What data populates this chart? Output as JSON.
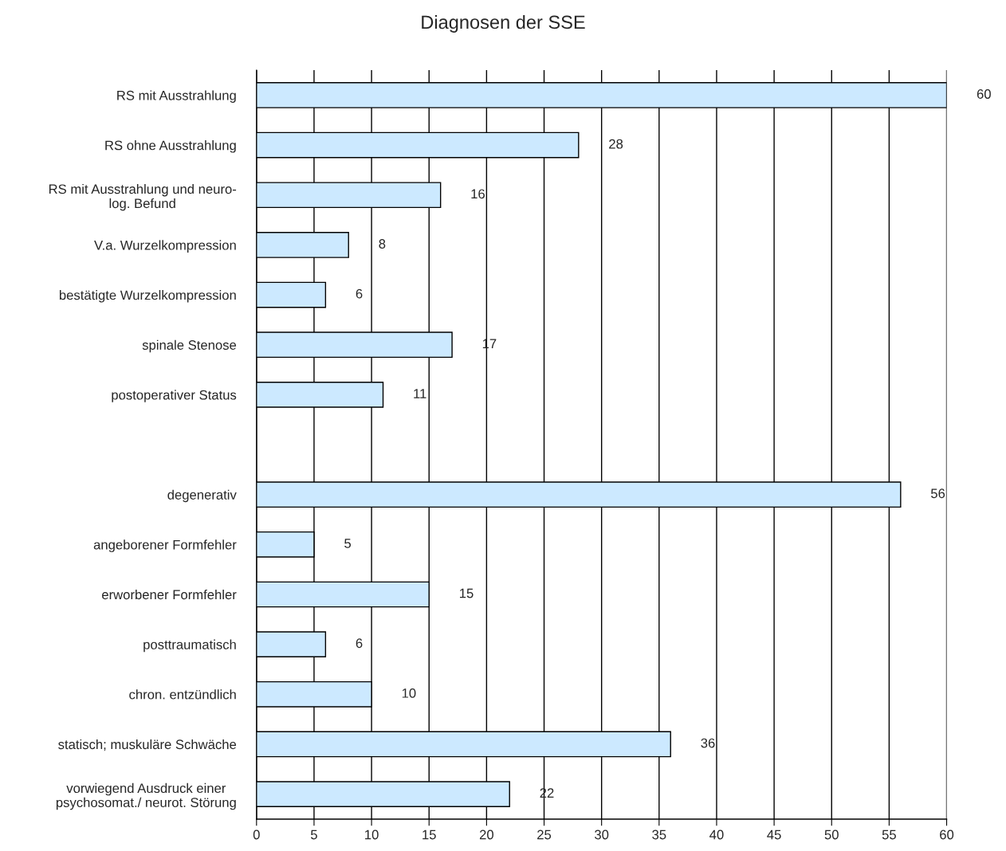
{
  "chart_data": {
    "type": "bar",
    "orientation": "horizontal",
    "title": "Diagnosen der SSE",
    "categories": [
      "RS mit Ausstrahlung",
      "RS ohne Ausstrahlung",
      "RS mit Ausstrahlung und neuro-\nlog. Befund",
      "V.a. Wurzelkompression",
      "bestätigte Wurzelkompression",
      "spinale Stenose",
      "postoperativer Status",
      null,
      "degenerativ",
      "angeborener Formfehler",
      "erworbener Formfehler",
      "posttraumatisch",
      "chron. entzündlich",
      "statisch; muskuläre Schwäche",
      "vorwiegend Ausdruck einer\npsychosomat./ neurot. Störung"
    ],
    "values": [
      60,
      28,
      16,
      8,
      6,
      17,
      11,
      null,
      56,
      5,
      15,
      6,
      10,
      36,
      22
    ],
    "color": "#cce9ff",
    "xlim": [
      0,
      60
    ],
    "xticks": [
      0,
      5,
      10,
      15,
      20,
      25,
      30,
      35,
      40,
      45,
      50,
      55,
      60
    ],
    "grid": "x",
    "data_labels": true,
    "legend": false
  }
}
